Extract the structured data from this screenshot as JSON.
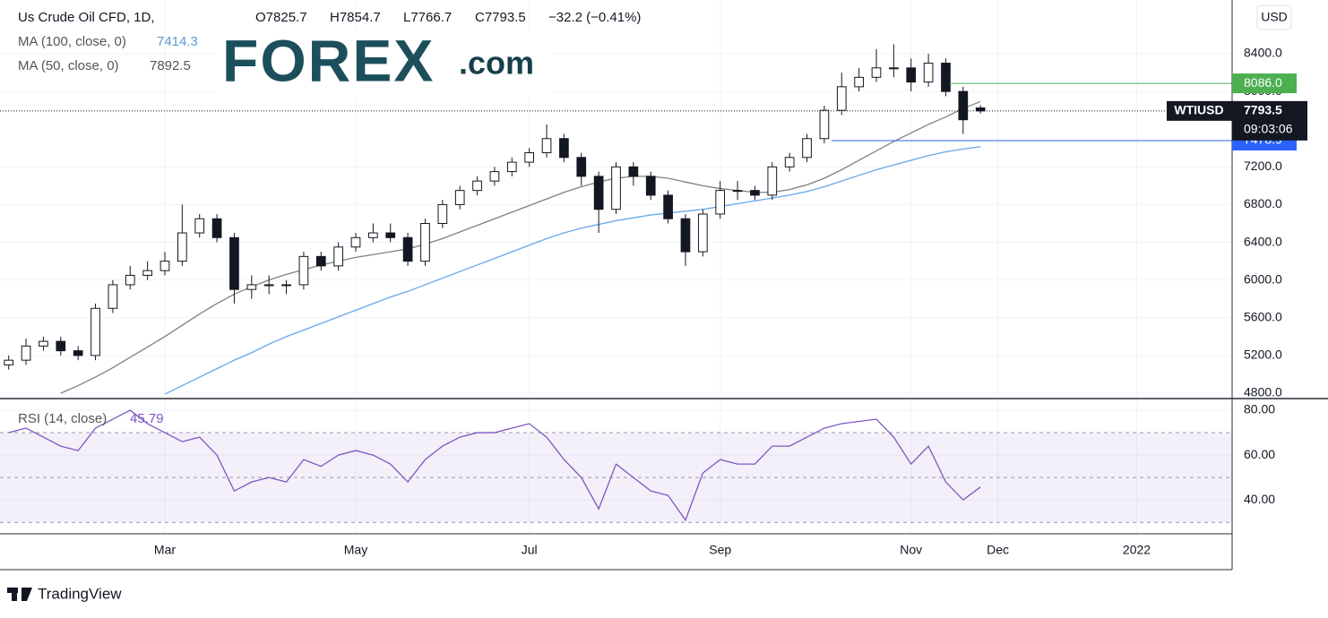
{
  "chart_data": {
    "type": "candlestick",
    "title": "Us Crude Oil CFD, 1D,",
    "ohlc_labels": [
      "O7825.7",
      "H7854.7",
      "L7766.7",
      "C7793.5",
      "−32.2 (−0.41%)"
    ],
    "categories": [
      null,
      null,
      null,
      null,
      null,
      null,
      null,
      null,
      null,
      "Mar",
      null,
      null,
      null,
      null,
      null,
      null,
      null,
      null,
      null,
      null,
      "May",
      null,
      null,
      null,
      null,
      null,
      null,
      null,
      null,
      null,
      "Jul",
      null,
      null,
      null,
      null,
      null,
      null,
      null,
      null,
      null,
      null,
      "Sep",
      null,
      null,
      null,
      null,
      null,
      null,
      null,
      null,
      null,
      null,
      "Nov",
      null,
      null,
      null,
      null,
      "Dec",
      null,
      null,
      null,
      null,
      null,
      null,
      null,
      "2022",
      null,
      null,
      null,
      null,
      null
    ],
    "open": [
      5100,
      5150,
      5300,
      5350,
      5250,
      5200,
      5700,
      5950,
      6050,
      6100,
      6200,
      6500,
      6650,
      6450,
      5900,
      5950,
      5950,
      5950,
      6250,
      6150,
      6350,
      6450,
      6500,
      6450,
      6200,
      6600,
      6800,
      6950,
      7050,
      7150,
      7250,
      7350,
      7500,
      7300,
      7100,
      6750,
      7200,
      7100,
      6900,
      6650,
      6300,
      6700,
      6950,
      6950,
      6900,
      7200,
      7300,
      7500,
      7800,
      8050,
      8150,
      8250,
      8250,
      8100,
      8300,
      8000,
      7825.7,
      null,
      null,
      null,
      null,
      null,
      null,
      null,
      null,
      null,
      null,
      null,
      null,
      null,
      null
    ],
    "high": [
      5200,
      5380,
      5400,
      5400,
      5300,
      5750,
      6000,
      6150,
      6200,
      6300,
      6800,
      6700,
      6700,
      6500,
      6050,
      6050,
      6000,
      6300,
      6300,
      6400,
      6500,
      6600,
      6600,
      6500,
      6650,
      6850,
      7000,
      7100,
      7200,
      7300,
      7400,
      7650,
      7550,
      7350,
      7150,
      7250,
      7250,
      7150,
      6950,
      6700,
      6750,
      7050,
      7050,
      7000,
      7250,
      7350,
      7550,
      7850,
      8200,
      8250,
      8450,
      8500,
      8350,
      8400,
      8350,
      8050,
      7854.7,
      null,
      null,
      null,
      null,
      null,
      null,
      null,
      null,
      null,
      null,
      null,
      null,
      null,
      null
    ],
    "low": [
      5050,
      5100,
      5250,
      5200,
      5150,
      5150,
      5650,
      5900,
      6000,
      6050,
      6150,
      6450,
      6400,
      5750,
      5800,
      5850,
      5850,
      5900,
      6100,
      6100,
      6300,
      6400,
      6400,
      6150,
      6150,
      6550,
      6750,
      6900,
      7000,
      7100,
      7200,
      7300,
      7250,
      7000,
      6500,
      6700,
      7000,
      6850,
      6600,
      6150,
      6250,
      6650,
      6850,
      6850,
      6850,
      7150,
      7250,
      7450,
      7750,
      8000,
      8100,
      8150,
      8000,
      8050,
      7950,
      7550,
      7766.7,
      null,
      null,
      null,
      null,
      null,
      null,
      null,
      null,
      null,
      null,
      null,
      null,
      null,
      null
    ],
    "close": [
      5150,
      5300,
      5350,
      5250,
      5200,
      5700,
      5950,
      6050,
      6100,
      6200,
      6500,
      6650,
      6450,
      5900,
      5950,
      5950,
      5950,
      6250,
      6150,
      6350,
      6450,
      6500,
      6450,
      6200,
      6600,
      6800,
      6950,
      7050,
      7150,
      7250,
      7350,
      7500,
      7300,
      7100,
      6750,
      7200,
      7100,
      6900,
      6650,
      6300,
      6700,
      6950,
      6950,
      6900,
      7200,
      7300,
      7500,
      7800,
      8050,
      8150,
      8250,
      8250,
      8100,
      8300,
      8000,
      7700,
      7793.5,
      null,
      null,
      null,
      null,
      null,
      null,
      null,
      null,
      null,
      null,
      null,
      null,
      null,
      null
    ],
    "series": [
      {
        "name": "MA (100, close, 0)",
        "last": 7414.3,
        "color": "#64a8e8",
        "label_color": "#5b9bd5",
        "values": [
          null,
          null,
          null,
          null,
          null,
          null,
          null,
          null,
          null,
          4790,
          4880,
          4970,
          5060,
          5150,
          5230,
          5320,
          5400,
          5470,
          5540,
          5610,
          5680,
          5750,
          5820,
          5880,
          5950,
          6020,
          6090,
          6160,
          6230,
          6300,
          6370,
          6440,
          6500,
          6550,
          6590,
          6630,
          6660,
          6690,
          6710,
          6730,
          6750,
          6780,
          6810,
          6840,
          6870,
          6900,
          6940,
          6990,
          7050,
          7110,
          7170,
          7220,
          7270,
          7320,
          7360,
          7390,
          7414.3,
          null,
          null,
          null,
          null,
          null,
          null,
          null,
          null,
          null,
          null,
          null,
          null,
          null,
          null
        ]
      },
      {
        "name": "MA (50, close, 0)",
        "last": 7892.5,
        "color": "#808080",
        "label_color": "#555555",
        "values": [
          null,
          null,
          null,
          4800,
          4880,
          4970,
          5070,
          5180,
          5290,
          5400,
          5520,
          5640,
          5750,
          5850,
          5930,
          6000,
          6060,
          6110,
          6160,
          6200,
          6240,
          6270,
          6300,
          6330,
          6380,
          6440,
          6510,
          6580,
          6650,
          6720,
          6790,
          6860,
          6930,
          6990,
          7040,
          7080,
          7100,
          7100,
          7080,
          7040,
          7000,
          6970,
          6950,
          6930,
          6930,
          6960,
          7010,
          7080,
          7170,
          7270,
          7370,
          7470,
          7560,
          7650,
          7730,
          7820,
          7892.5,
          null,
          null,
          null,
          null,
          null,
          null,
          null,
          null,
          null,
          null,
          null,
          null,
          null,
          null
        ]
      }
    ],
    "ylim": [
      4762,
      8970
    ],
    "yticks": [
      {
        "value": 4800,
        "label": "4800.0"
      },
      {
        "value": 5200,
        "label": "5200.0"
      },
      {
        "value": 5600,
        "label": "5600.0"
      },
      {
        "value": 6000,
        "label": "6000.0"
      },
      {
        "value": 6400,
        "label": "6400.0"
      },
      {
        "value": 6800,
        "label": "6800.0"
      },
      {
        "value": 7200,
        "label": "7200.0"
      },
      {
        "value": 8000,
        "label": "8000.0"
      },
      {
        "value": 8400,
        "label": "8400.0"
      }
    ],
    "grid": true,
    "price_levels": [
      {
        "value": 8086,
        "label": "8086.0",
        "color": "#4caf50"
      },
      {
        "value": 7478.9,
        "label": "7478.9",
        "color": "#2962ff"
      }
    ],
    "last_price": {
      "symbol": "WTIUSD",
      "value": 7793.5,
      "countdown": "09:03:06"
    },
    "currency": "USD",
    "rsi": {
      "type": "line",
      "name": "RSI (14, close)",
      "last": 45.79,
      "color": "#7e57c2",
      "values": [
        70,
        72,
        68,
        64,
        62,
        72,
        76,
        80,
        74,
        70,
        66,
        68,
        60,
        44,
        48,
        50,
        48,
        58,
        55,
        60,
        62,
        60,
        56,
        48,
        58,
        64,
        68,
        70,
        70,
        72,
        74,
        68,
        58,
        50,
        36,
        56,
        50,
        44,
        42,
        31,
        52,
        58,
        56,
        56,
        64,
        64,
        68,
        72,
        74,
        75,
        76,
        68,
        56,
        64,
        48,
        40,
        45.79,
        null,
        null,
        null,
        null,
        null,
        null,
        null,
        null,
        null,
        null,
        null,
        null,
        null,
        null
      ],
      "ylim": [
        25.3,
        84
      ],
      "yticks": [
        {
          "value": 40,
          "label": "40.00"
        },
        {
          "value": 60,
          "label": "60.00"
        },
        {
          "value": 80,
          "label": "80.00"
        }
      ],
      "levels": [
        30,
        50,
        70
      ]
    }
  },
  "logo": {
    "brand": "FOREX",
    "suffix": ".com"
  },
  "footer": "TradingView"
}
